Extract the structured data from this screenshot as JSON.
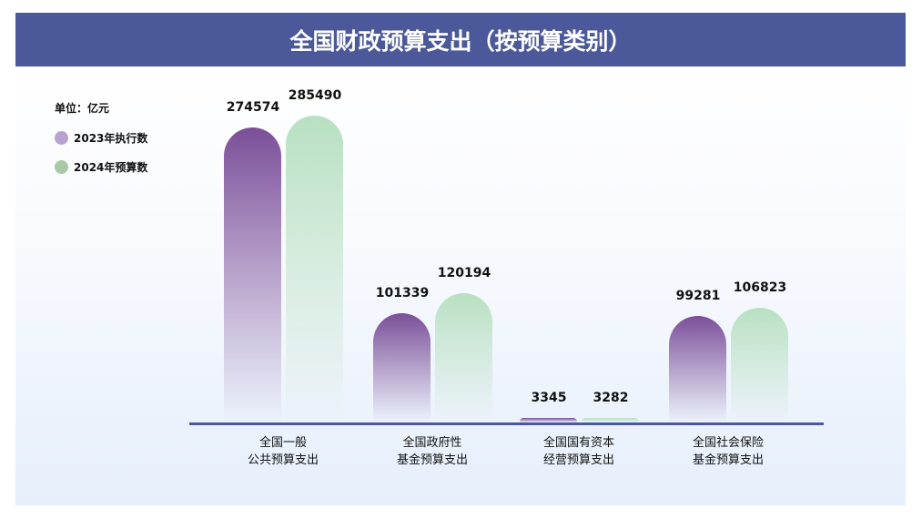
{
  "title": "全国财政预算支出（按预算类别）",
  "chart_data": {
    "type": "bar",
    "title": "全国财政预算支出（按预算类别）",
    "unit_label": "单位：亿元",
    "categories": [
      [
        "全国一般",
        "公共预算支出"
      ],
      [
        "全国政府性",
        "基金预算支出"
      ],
      [
        "全国国有资本",
        "经营预算支出"
      ],
      [
        "全国社会保险",
        "基金预算支出"
      ]
    ],
    "series": [
      {
        "name": "2023年执行数",
        "values": [
          274574,
          101339,
          3345,
          99281
        ],
        "color": "#7b4f99",
        "legend_color": "#b7a2cf"
      },
      {
        "name": "2024年预算数",
        "values": [
          285490,
          120194,
          3282,
          106823
        ],
        "color": "#b8e0c2",
        "legend_color": "#a9c9a7"
      }
    ],
    "ylim": [
      0,
      290000
    ],
    "grid": false,
    "legend": "top-left",
    "data_labels": true
  }
}
